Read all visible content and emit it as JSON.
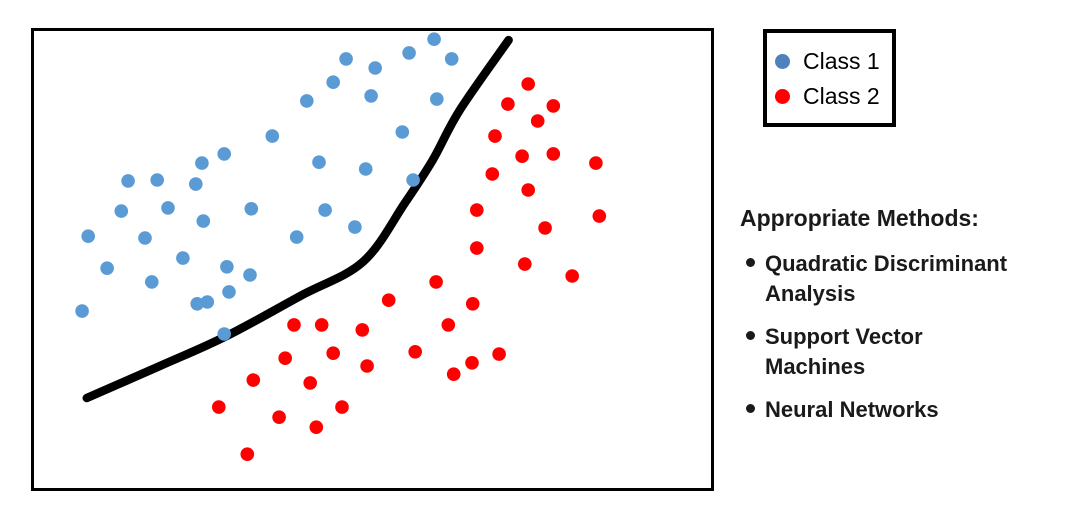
{
  "figure": {
    "background": "#ffffff",
    "boundary_color": "#000000"
  },
  "chart_data": {
    "type": "scatter",
    "title": "",
    "xlabel": "",
    "ylabel": "",
    "xlim": [
      0,
      100
    ],
    "ylim": [
      0,
      100
    ],
    "axes_visible": false,
    "grid": false,
    "frame": "plain black box, no ticks or tick labels",
    "legend_position": "outside-top-right",
    "marker_radius_px": 6.8,
    "series": [
      {
        "name": "Class 1",
        "color": "#5B9BD5",
        "marker": "circle",
        "points": [
          [
            59.1,
            98.2
          ],
          [
            46.1,
            93.9
          ],
          [
            55.4,
            95.2
          ],
          [
            61.7,
            93.9
          ],
          [
            50.4,
            91.9
          ],
          [
            44.2,
            88.8
          ],
          [
            49.8,
            85.8
          ],
          [
            40.3,
            84.7
          ],
          [
            59.5,
            85.1
          ],
          [
            54.4,
            77.9
          ],
          [
            35.2,
            77.0
          ],
          [
            28.1,
            73.1
          ],
          [
            24.8,
            71.1
          ],
          [
            42.1,
            71.3
          ],
          [
            49.0,
            69.8
          ],
          [
            56.0,
            67.4
          ],
          [
            13.9,
            67.2
          ],
          [
            18.2,
            67.4
          ],
          [
            23.9,
            66.5
          ],
          [
            12.9,
            60.6
          ],
          [
            19.8,
            61.3
          ],
          [
            25.0,
            58.4
          ],
          [
            32.1,
            61.1
          ],
          [
            43.0,
            60.8
          ],
          [
            47.4,
            57.1
          ],
          [
            8.0,
            55.1
          ],
          [
            16.4,
            54.7
          ],
          [
            38.8,
            54.9
          ],
          [
            22.0,
            50.3
          ],
          [
            10.8,
            48.1
          ],
          [
            28.5,
            48.4
          ],
          [
            31.9,
            46.6
          ],
          [
            17.4,
            45.1
          ],
          [
            28.8,
            42.9
          ],
          [
            24.1,
            40.3
          ],
          [
            25.6,
            40.7
          ],
          [
            7.1,
            38.7
          ],
          [
            28.1,
            33.7
          ]
        ]
      },
      {
        "name": "Class 2",
        "color": "#FF0000",
        "marker": "circle",
        "points": [
          [
            73.0,
            88.4
          ],
          [
            70.0,
            84.0
          ],
          [
            76.7,
            83.6
          ],
          [
            74.4,
            80.3
          ],
          [
            68.1,
            77.0
          ],
          [
            72.1,
            72.6
          ],
          [
            76.7,
            73.1
          ],
          [
            83.0,
            71.1
          ],
          [
            67.7,
            68.7
          ],
          [
            73.0,
            65.2
          ],
          [
            65.4,
            60.8
          ],
          [
            75.5,
            56.9
          ],
          [
            83.5,
            59.5
          ],
          [
            65.4,
            52.5
          ],
          [
            72.5,
            49.0
          ],
          [
            79.5,
            46.4
          ],
          [
            59.4,
            45.1
          ],
          [
            52.4,
            41.1
          ],
          [
            64.8,
            40.3
          ],
          [
            38.4,
            35.7
          ],
          [
            42.5,
            35.7
          ],
          [
            48.5,
            34.6
          ],
          [
            61.2,
            35.7
          ],
          [
            44.2,
            29.5
          ],
          [
            37.1,
            28.4
          ],
          [
            49.2,
            26.7
          ],
          [
            56.3,
            29.8
          ],
          [
            62.0,
            24.9
          ],
          [
            64.7,
            27.4
          ],
          [
            68.7,
            29.3
          ],
          [
            32.4,
            23.6
          ],
          [
            40.8,
            23.0
          ],
          [
            27.3,
            17.7
          ],
          [
            45.5,
            17.7
          ],
          [
            36.2,
            15.5
          ],
          [
            41.7,
            13.3
          ],
          [
            31.5,
            7.4
          ]
        ]
      }
    ],
    "decision_boundary": {
      "description": "thick black nonlinear curve separating the two classes",
      "color": "#000000",
      "stroke_width_px": 8.5,
      "points": [
        [
          7.8,
          19.7
        ],
        [
          18.6,
          26.7
        ],
        [
          28.5,
          33.3
        ],
        [
          39.3,
          42.0
        ],
        [
          48.6,
          49.5
        ],
        [
          54.8,
          62.4
        ],
        [
          58.9,
          71.8
        ],
        [
          62.9,
          82.7
        ],
        [
          70.1,
          98.0
        ]
      ]
    }
  },
  "legend": {
    "border_color": "#000000",
    "items": [
      {
        "label": "Class 1",
        "color": "#4F81BD"
      },
      {
        "label": "Class 2",
        "color": "#FF0000"
      }
    ]
  },
  "methods": {
    "heading": "Appropriate Methods:",
    "items": [
      {
        "text": "Quadratic Discriminant Analysis",
        "lines": [
          "Quadratic Discriminant",
          "Analysis"
        ]
      },
      {
        "text": "Support Vector Machines",
        "lines": [
          "Support Vector",
          "Machines"
        ]
      },
      {
        "text": "Neural Networks",
        "lines": [
          "Neural Networks"
        ]
      }
    ]
  }
}
